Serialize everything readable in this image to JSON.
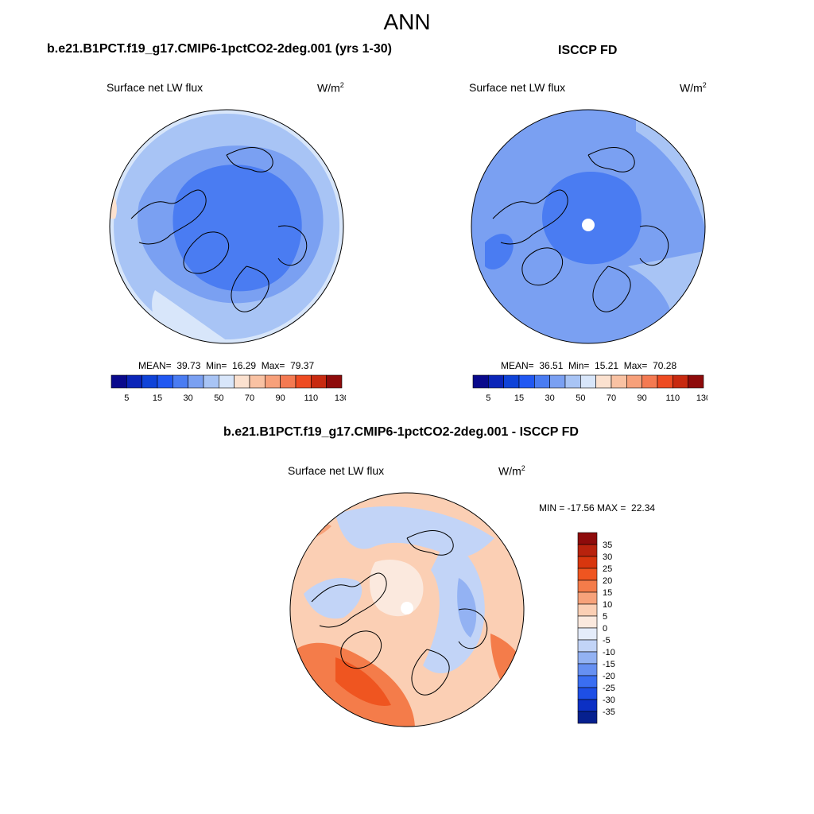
{
  "main_title": "ANN",
  "panels": [
    {
      "title": "b.e21.B1PCT.f19_g17.CMIP6-1pctCO2-2deg.001 (yrs 1-30)",
      "variable": "Surface net LW flux",
      "units": "W/m",
      "units_sup": "2",
      "stats": "MEAN=  39.73  Min=  16.29  Max=  79.37"
    },
    {
      "title": "ISCCP FD",
      "variable": "Surface net LW flux",
      "units": "W/m",
      "units_sup": "2",
      "stats": "MEAN=  36.51  Min=  15.21  Max=  70.28"
    },
    {
      "title": "b.e21.B1PCT.f19_g17.CMIP6-1pctCO2-2deg.001 - ISCCP FD",
      "variable": "Surface net LW flux",
      "units": "W/m",
      "units_sup": "2",
      "stats": "MIN = -17.56 MAX =  22.34"
    }
  ],
  "chart_data": [
    {
      "type": "heatmap",
      "projection": "north polar stereographic",
      "title": "b.e21.B1PCT.f19_g17.CMIP6-1pctCO2-2deg.001 (yrs 1-30)",
      "variable": "Surface net LW flux",
      "units": "W/m2",
      "mean": 39.73,
      "min": 16.29,
      "max": 79.37,
      "colorbar_levels": [
        5,
        10,
        15,
        20,
        30,
        40,
        50,
        60,
        70,
        80,
        90,
        100,
        110,
        120,
        130
      ],
      "colorbar_tick_labels": [
        "5",
        "15",
        "30",
        "50",
        "70",
        "90",
        "110",
        "130"
      ],
      "colorbar_colors": [
        "#0a0a8c",
        "#0b25b8",
        "#0f43d8",
        "#2158f2",
        "#4a7cf2",
        "#7aa0f2",
        "#a8c4f5",
        "#d8e6fa",
        "#fbe1cf",
        "#f9c2a3",
        "#f7a07a",
        "#f47a52",
        "#ee4b22",
        "#c82a10",
        "#8e0b0b"
      ],
      "regions": [
        {
          "name": "arctic-basin-core",
          "class": 3
        },
        {
          "name": "mid-latitude-belt",
          "class": 5
        },
        {
          "name": "outer-ring",
          "class": 6
        },
        {
          "name": "north-atlantic-tongue",
          "class": 7
        },
        {
          "name": "pacific-edge-warm",
          "class": 8
        }
      ]
    },
    {
      "type": "heatmap",
      "projection": "north polar stereographic",
      "title": "ISCCP FD",
      "variable": "Surface net LW flux",
      "units": "W/m2",
      "mean": 36.51,
      "min": 15.21,
      "max": 70.28,
      "colorbar_levels": [
        5,
        10,
        15,
        20,
        30,
        40,
        50,
        60,
        70,
        80,
        90,
        100,
        110,
        120,
        130
      ],
      "colorbar_tick_labels": [
        "5",
        "15",
        "30",
        "50",
        "70",
        "90",
        "110",
        "130"
      ],
      "colorbar_colors": [
        "#0a0a8c",
        "#0b25b8",
        "#0f43d8",
        "#2158f2",
        "#4a7cf2",
        "#7aa0f2",
        "#a8c4f5",
        "#d8e6fa",
        "#fbe1cf",
        "#f9c2a3",
        "#f7a07a",
        "#f47a52",
        "#ee4b22",
        "#c82a10",
        "#8e0b0b"
      ],
      "missing_pole": true,
      "regions": [
        {
          "name": "central-arctic",
          "class": 3
        },
        {
          "name": "broad-field",
          "class": 5
        },
        {
          "name": "eastern-sector",
          "class": 6
        },
        {
          "name": "outer-warm-rim",
          "class": 8
        }
      ]
    },
    {
      "type": "heatmap",
      "projection": "north polar stereographic",
      "title": "b.e21.B1PCT.f19_g17.CMIP6-1pctCO2-2deg.001 - ISCCP FD",
      "variable": "Surface net LW flux",
      "units": "W/m2",
      "min": -17.56,
      "max": 22.34,
      "missing_pole": true,
      "colorbar_levels": [
        35,
        30,
        25,
        20,
        15,
        10,
        5,
        0,
        -5,
        -10,
        -15,
        -20,
        -25,
        -30,
        -35
      ],
      "colorbar_tick_labels": [
        "35",
        "30",
        "25",
        "20",
        "15",
        "10",
        "5",
        "0",
        "-5",
        "-10",
        "-15",
        "-20",
        "-25",
        "-30",
        "-35"
      ],
      "colorbar_colors": [
        "#8e0b0b",
        "#b8220d",
        "#d8360e",
        "#ef5520",
        "#f47c4a",
        "#f7a27a",
        "#fbcfb4",
        "#fbe9de",
        "#e4ecfa",
        "#c2d4f7",
        "#93b2f3",
        "#6690f2",
        "#3a6ef2",
        "#1e4fe6",
        "#0c30c4",
        "#06208f"
      ],
      "regions": [
        {
          "name": "arctic-ocean-positive",
          "class": 9
        },
        {
          "name": "siberia-negative",
          "class": 6
        },
        {
          "name": "north-america-positive",
          "class": 12
        },
        {
          "name": "northwest-atlantic-positive",
          "class": 12
        },
        {
          "name": "eurasia-mixed",
          "class": 7
        }
      ]
    }
  ],
  "colors": {
    "outline": "#000000",
    "missing": "#ffffff"
  }
}
